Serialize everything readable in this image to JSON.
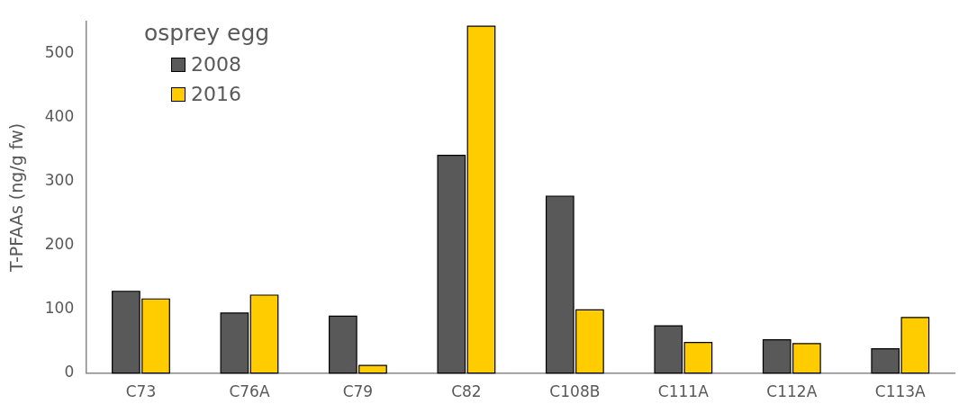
{
  "chart_data": {
    "type": "bar",
    "ylabel": "T-PFAAs (ng/g fw)",
    "legend_title": "osprey egg",
    "legend": "top left",
    "grid": false,
    "categories": [
      "C73",
      "C76A",
      "C79",
      "C82",
      "C108B",
      "C111A",
      "C112A",
      "C113A"
    ],
    "series": [
      {
        "name": "2008",
        "color": "#595959",
        "values": [
          128,
          94,
          89,
          341,
          277,
          74,
          52,
          38
        ]
      },
      {
        "name": "2016",
        "color": "#ffcc00",
        "values": [
          116,
          122,
          12,
          543,
          99,
          48,
          46,
          87
        ]
      }
    ],
    "ylim": [
      0,
      550
    ],
    "yticks": [
      0,
      100,
      200,
      300,
      400,
      500
    ]
  }
}
